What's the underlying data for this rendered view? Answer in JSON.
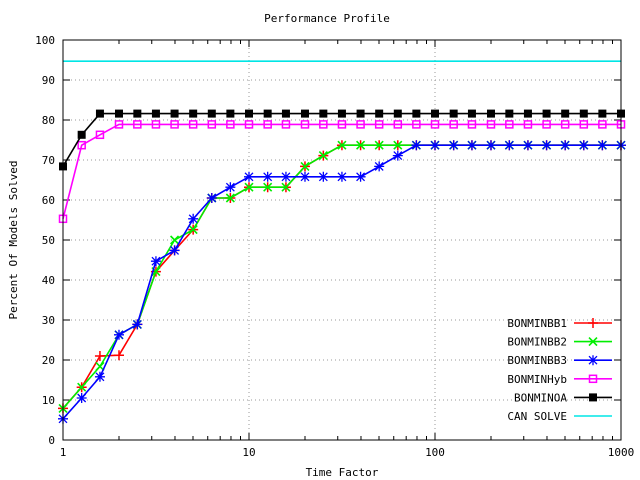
{
  "chart_data": {
    "type": "line",
    "title": "Performance Profile",
    "xlabel": "Time Factor",
    "ylabel": "Percent Of Models Solved",
    "xscale": "log",
    "xlim": [
      1,
      1000
    ],
    "ylim": [
      0,
      100
    ],
    "xticks": [
      {
        "value": 1,
        "label": "1"
      },
      {
        "value": 10,
        "label": "10"
      },
      {
        "value": 100,
        "label": "100"
      },
      {
        "value": 1000,
        "label": "1000"
      }
    ],
    "yticks": [
      0,
      10,
      20,
      30,
      40,
      50,
      60,
      70,
      80,
      90,
      100
    ],
    "grid": true,
    "legend_position": "bottom-right",
    "series": [
      {
        "name": "BONMINBB1",
        "color": "#ff0000",
        "marker": "plus",
        "points": [
          [
            1,
            7.9
          ],
          [
            1.26,
            13.2
          ],
          [
            1.58,
            21.0
          ],
          [
            2.0,
            21.2
          ],
          [
            2.51,
            28.9
          ],
          [
            3.16,
            42.1
          ],
          [
            3.98,
            47.4
          ],
          [
            5.01,
            52.6
          ],
          [
            6.31,
            60.5
          ],
          [
            7.94,
            60.5
          ],
          [
            10.0,
            63.2
          ],
          [
            12.6,
            63.2
          ],
          [
            15.8,
            63.2
          ],
          [
            20.0,
            68.4
          ],
          [
            25.1,
            71.1
          ],
          [
            31.6,
            73.7
          ],
          [
            39.8,
            73.7
          ],
          [
            50.1,
            73.7
          ],
          [
            63.1,
            73.7
          ],
          [
            79.4,
            73.7
          ],
          [
            100,
            73.7
          ],
          [
            126,
            73.7
          ],
          [
            158,
            73.7
          ],
          [
            200,
            73.7
          ],
          [
            251,
            73.7
          ],
          [
            316,
            73.7
          ],
          [
            398,
            73.7
          ],
          [
            501,
            73.7
          ],
          [
            631,
            73.7
          ],
          [
            794,
            73.7
          ],
          [
            1000,
            73.7
          ]
        ]
      },
      {
        "name": "BONMINBB2",
        "color": "#00ee00",
        "marker": "x",
        "points": [
          [
            1,
            7.9
          ],
          [
            1.26,
            13.2
          ],
          [
            1.58,
            18.4
          ],
          [
            2.0,
            26.3
          ],
          [
            2.51,
            28.9
          ],
          [
            3.16,
            42.1
          ],
          [
            3.98,
            50.0
          ],
          [
            5.01,
            52.6
          ],
          [
            6.31,
            60.5
          ],
          [
            7.94,
            60.5
          ],
          [
            10.0,
            63.2
          ],
          [
            12.6,
            63.2
          ],
          [
            15.8,
            63.2
          ],
          [
            20.0,
            68.4
          ],
          [
            25.1,
            71.1
          ],
          [
            31.6,
            73.7
          ],
          [
            39.8,
            73.7
          ],
          [
            50.1,
            73.7
          ],
          [
            63.1,
            73.7
          ],
          [
            79.4,
            73.7
          ],
          [
            100,
            73.7
          ],
          [
            126,
            73.7
          ],
          [
            158,
            73.7
          ],
          [
            200,
            73.7
          ],
          [
            251,
            73.7
          ],
          [
            316,
            73.7
          ],
          [
            398,
            73.7
          ],
          [
            501,
            73.7
          ],
          [
            631,
            73.7
          ],
          [
            794,
            73.7
          ],
          [
            1000,
            73.7
          ]
        ]
      },
      {
        "name": "BONMINBB3",
        "color": "#0000ff",
        "marker": "star",
        "points": [
          [
            1,
            5.3
          ],
          [
            1.26,
            10.5
          ],
          [
            1.58,
            15.8
          ],
          [
            2.0,
            26.3
          ],
          [
            2.51,
            28.9
          ],
          [
            3.16,
            44.7
          ],
          [
            3.98,
            47.4
          ],
          [
            5.01,
            55.3
          ],
          [
            6.31,
            60.5
          ],
          [
            7.94,
            63.2
          ],
          [
            10.0,
            65.8
          ],
          [
            12.6,
            65.8
          ],
          [
            15.8,
            65.8
          ],
          [
            20.0,
            65.8
          ],
          [
            25.1,
            65.8
          ],
          [
            31.6,
            65.8
          ],
          [
            39.8,
            65.8
          ],
          [
            50.1,
            68.4
          ],
          [
            63.1,
            71.1
          ],
          [
            79.4,
            73.7
          ],
          [
            100,
            73.7
          ],
          [
            126,
            73.7
          ],
          [
            158,
            73.7
          ],
          [
            200,
            73.7
          ],
          [
            251,
            73.7
          ],
          [
            316,
            73.7
          ],
          [
            398,
            73.7
          ],
          [
            501,
            73.7
          ],
          [
            631,
            73.7
          ],
          [
            794,
            73.7
          ],
          [
            1000,
            73.7
          ]
        ]
      },
      {
        "name": "BONMINHyb",
        "color": "#ff00ff",
        "marker": "square-open",
        "points": [
          [
            1,
            55.3
          ],
          [
            1.26,
            73.7
          ],
          [
            1.58,
            76.3
          ],
          [
            2.0,
            78.9
          ],
          [
            2.51,
            78.9
          ],
          [
            3.16,
            78.9
          ],
          [
            3.98,
            78.9
          ],
          [
            5.01,
            78.9
          ],
          [
            6.31,
            78.9
          ],
          [
            7.94,
            78.9
          ],
          [
            10.0,
            78.9
          ],
          [
            12.6,
            78.9
          ],
          [
            15.8,
            78.9
          ],
          [
            20.0,
            78.9
          ],
          [
            25.1,
            78.9
          ],
          [
            31.6,
            78.9
          ],
          [
            39.8,
            78.9
          ],
          [
            50.1,
            78.9
          ],
          [
            63.1,
            78.9
          ],
          [
            79.4,
            78.9
          ],
          [
            100,
            78.9
          ],
          [
            126,
            78.9
          ],
          [
            158,
            78.9
          ],
          [
            200,
            78.9
          ],
          [
            251,
            78.9
          ],
          [
            316,
            78.9
          ],
          [
            398,
            78.9
          ],
          [
            501,
            78.9
          ],
          [
            631,
            78.9
          ],
          [
            794,
            78.9
          ],
          [
            1000,
            78.9
          ]
        ]
      },
      {
        "name": "BONMINOA",
        "color": "#000000",
        "marker": "square-filled",
        "points": [
          [
            1,
            68.4
          ],
          [
            1.26,
            76.3
          ],
          [
            1.58,
            81.6
          ],
          [
            2.0,
            81.6
          ],
          [
            2.51,
            81.6
          ],
          [
            3.16,
            81.6
          ],
          [
            3.98,
            81.6
          ],
          [
            5.01,
            81.6
          ],
          [
            6.31,
            81.6
          ],
          [
            7.94,
            81.6
          ],
          [
            10.0,
            81.6
          ],
          [
            12.6,
            81.6
          ],
          [
            15.8,
            81.6
          ],
          [
            20.0,
            81.6
          ],
          [
            25.1,
            81.6
          ],
          [
            31.6,
            81.6
          ],
          [
            39.8,
            81.6
          ],
          [
            50.1,
            81.6
          ],
          [
            63.1,
            81.6
          ],
          [
            79.4,
            81.6
          ],
          [
            100,
            81.6
          ],
          [
            126,
            81.6
          ],
          [
            158,
            81.6
          ],
          [
            200,
            81.6
          ],
          [
            251,
            81.6
          ],
          [
            316,
            81.6
          ],
          [
            398,
            81.6
          ],
          [
            501,
            81.6
          ],
          [
            631,
            81.6
          ],
          [
            794,
            81.6
          ],
          [
            1000,
            81.6
          ]
        ]
      },
      {
        "name": "CAN SOLVE",
        "color": "#00e5e5",
        "marker": "none",
        "points": [
          [
            1,
            94.7
          ],
          [
            1000,
            94.7
          ]
        ]
      }
    ]
  }
}
